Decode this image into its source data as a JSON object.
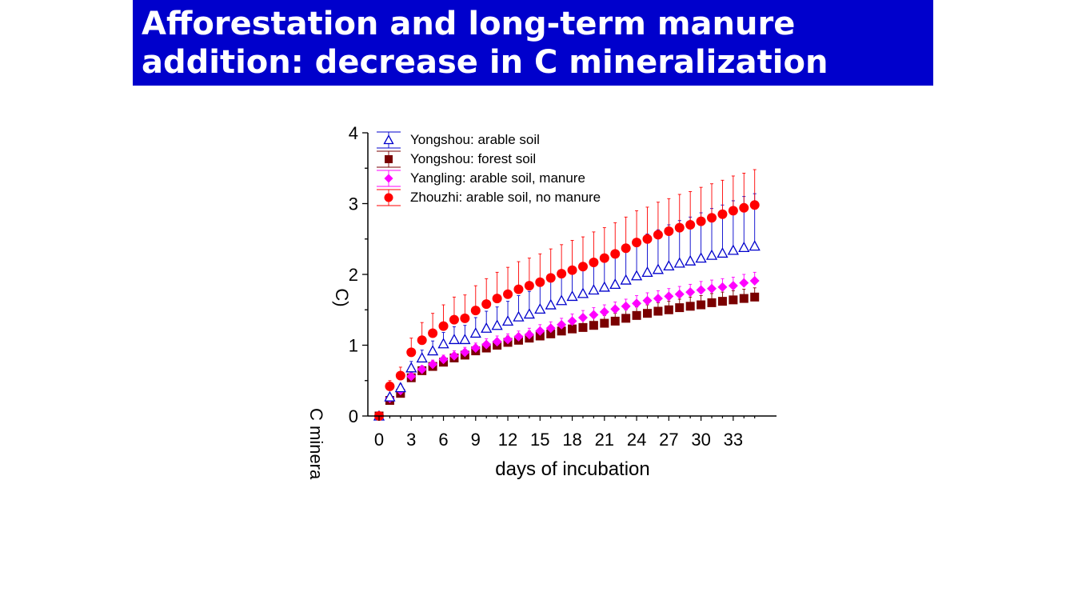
{
  "slide": {
    "title_line1": "Afforestation and long-term manure",
    "title_line2": "addition: decrease in C mineralization"
  },
  "chart_data": {
    "type": "scatter",
    "title": "",
    "xlabel": "days of incubation",
    "ylabel": "C minera",
    "ylabel_fragment": "C)",
    "xlim": [
      -0.5,
      35
    ],
    "ylim": [
      0,
      4
    ],
    "xticks": [
      "0",
      "3",
      "6",
      "9",
      "12",
      "15",
      "18",
      "21",
      "24",
      "27",
      "30",
      "33"
    ],
    "yticks": [
      "0",
      "1",
      "2",
      "3",
      "4"
    ],
    "legend_position": "top-left",
    "x": [
      0,
      1,
      2,
      3,
      4,
      5,
      6,
      7,
      8,
      9,
      10,
      11,
      12,
      13,
      14,
      15,
      16,
      17,
      18,
      19,
      20,
      21,
      22,
      23,
      24,
      25,
      26,
      27,
      28,
      29,
      30,
      31,
      32,
      33,
      34,
      35
    ],
    "series": [
      {
        "name": "Yongshou: arable soil",
        "color": "#0000cc",
        "marker": "triangle-open",
        "values": [
          0,
          0.27,
          0.4,
          0.68,
          0.82,
          0.92,
          1.02,
          1.08,
          1.08,
          1.17,
          1.24,
          1.28,
          1.34,
          1.4,
          1.44,
          1.51,
          1.57,
          1.63,
          1.69,
          1.73,
          1.78,
          1.82,
          1.86,
          1.92,
          1.98,
          2.03,
          2.07,
          2.12,
          2.16,
          2.19,
          2.23,
          2.27,
          2.3,
          2.34,
          2.38,
          2.4
        ],
        "errors": [
          0,
          0.04,
          0.05,
          0.09,
          0.11,
          0.14,
          0.16,
          0.18,
          0.2,
          0.22,
          0.24,
          0.26,
          0.28,
          0.3,
          0.32,
          0.34,
          0.36,
          0.38,
          0.4,
          0.42,
          0.44,
          0.46,
          0.48,
          0.5,
          0.52,
          0.54,
          0.56,
          0.58,
          0.6,
          0.62,
          0.64,
          0.66,
          0.68,
          0.7,
          0.72,
          0.74
        ]
      },
      {
        "name": "Yongshou: forest soil",
        "color": "#7a0000",
        "marker": "square",
        "values": [
          0,
          0.22,
          0.32,
          0.54,
          0.64,
          0.7,
          0.76,
          0.82,
          0.86,
          0.92,
          0.96,
          1.0,
          1.04,
          1.07,
          1.1,
          1.13,
          1.16,
          1.2,
          1.23,
          1.25,
          1.28,
          1.31,
          1.34,
          1.38,
          1.42,
          1.45,
          1.48,
          1.5,
          1.53,
          1.55,
          1.57,
          1.6,
          1.62,
          1.64,
          1.66,
          1.68
        ],
        "errors": [
          0,
          0.03,
          0.04,
          0.05,
          0.06,
          0.06,
          0.07,
          0.07,
          0.08,
          0.08,
          0.08,
          0.09,
          0.09,
          0.09,
          0.1,
          0.1,
          0.1,
          0.1,
          0.1,
          0.11,
          0.11,
          0.11,
          0.11,
          0.12,
          0.12,
          0.12,
          0.12,
          0.12,
          0.12,
          0.13,
          0.13,
          0.13,
          0.13,
          0.13,
          0.13,
          0.13
        ]
      },
      {
        "name": "Yangling: arable soil, manure",
        "color": "#ff00ff",
        "marker": "diamond",
        "values": [
          0,
          0.25,
          0.36,
          0.56,
          0.66,
          0.73,
          0.8,
          0.85,
          0.9,
          0.96,
          1.01,
          1.05,
          1.08,
          1.12,
          1.15,
          1.2,
          1.24,
          1.29,
          1.34,
          1.39,
          1.43,
          1.47,
          1.51,
          1.55,
          1.59,
          1.63,
          1.66,
          1.69,
          1.72,
          1.75,
          1.78,
          1.8,
          1.82,
          1.84,
          1.88,
          1.91
        ],
        "errors": [
          0,
          0.03,
          0.04,
          0.05,
          0.05,
          0.06,
          0.06,
          0.07,
          0.07,
          0.07,
          0.08,
          0.08,
          0.08,
          0.08,
          0.09,
          0.09,
          0.09,
          0.09,
          0.1,
          0.1,
          0.1,
          0.1,
          0.1,
          0.1,
          0.11,
          0.11,
          0.11,
          0.11,
          0.11,
          0.11,
          0.12,
          0.12,
          0.12,
          0.12,
          0.12,
          0.12
        ]
      },
      {
        "name": "Zhouzhi: arable soil, no manure",
        "color": "#ff0000",
        "marker": "circle",
        "values": [
          0,
          0.42,
          0.57,
          0.9,
          1.07,
          1.17,
          1.27,
          1.36,
          1.38,
          1.49,
          1.58,
          1.66,
          1.72,
          1.79,
          1.84,
          1.89,
          1.95,
          2.01,
          2.06,
          2.11,
          2.17,
          2.23,
          2.29,
          2.37,
          2.45,
          2.5,
          2.56,
          2.61,
          2.66,
          2.7,
          2.75,
          2.8,
          2.85,
          2.9,
          2.94,
          2.98
        ],
        "errors": [
          0,
          0.08,
          0.12,
          0.2,
          0.25,
          0.28,
          0.3,
          0.32,
          0.33,
          0.35,
          0.36,
          0.37,
          0.38,
          0.39,
          0.39,
          0.4,
          0.41,
          0.41,
          0.42,
          0.42,
          0.43,
          0.43,
          0.44,
          0.44,
          0.45,
          0.45,
          0.46,
          0.46,
          0.47,
          0.47,
          0.48,
          0.48,
          0.48,
          0.49,
          0.49,
          0.5
        ]
      }
    ]
  }
}
